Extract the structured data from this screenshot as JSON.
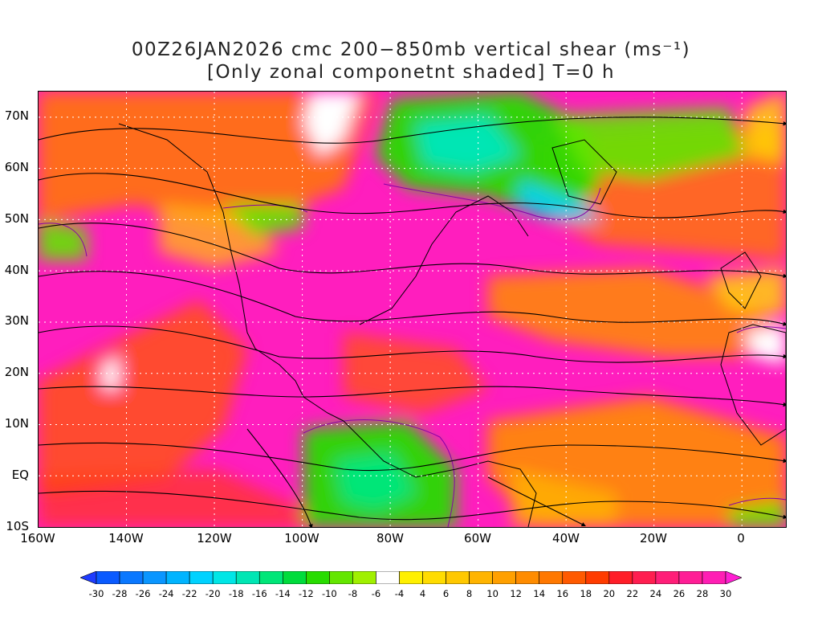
{
  "title": {
    "line1": "00Z26JAN2026 cmc 200−850mb vertical shear (ms⁻¹)",
    "line2": "[Only zonal componetnt shaded] T=0 h"
  },
  "axes": {
    "lat_labels": [
      "70N",
      "60N",
      "50N",
      "40N",
      "30N",
      "20N",
      "10N",
      "EQ",
      "10S"
    ],
    "lon_labels": [
      "160W",
      "140W",
      "120W",
      "100W",
      "80W",
      "60W",
      "40W",
      "20W",
      "0"
    ]
  },
  "map": {
    "lon_range": [
      -160,
      10
    ],
    "lat_range": [
      -10,
      75
    ],
    "grid": true,
    "grid_style": "dotted",
    "coastline_color": "#000000",
    "contour_color": "#8a00a8"
  },
  "colorbar": {
    "levels": [
      "-30",
      "-28",
      "-26",
      "-24",
      "-22",
      "-20",
      "-18",
      "-16",
      "-14",
      "-12",
      "-10",
      "-8",
      "-6",
      "-4",
      "4",
      "6",
      "8",
      "10",
      "12",
      "14",
      "16",
      "18",
      "20",
      "22",
      "24",
      "26",
      "28",
      "30"
    ],
    "colors": [
      "#1e3cff",
      "#0a5aff",
      "#0a78ff",
      "#0a96ff",
      "#00b4ff",
      "#00d2ff",
      "#00e6e6",
      "#00e6b4",
      "#00e678",
      "#00dc3c",
      "#28dc00",
      "#64e600",
      "#a0f000",
      "#ffffff",
      "#fff000",
      "#ffdc00",
      "#ffc800",
      "#ffb400",
      "#ffa000",
      "#ff8c00",
      "#ff7800",
      "#ff5a00",
      "#ff3c00",
      "#ff1e28",
      "#ff1e50",
      "#ff1e78",
      "#ff1e96",
      "#ff1eb4",
      "#ff1ed2"
    ]
  }
}
